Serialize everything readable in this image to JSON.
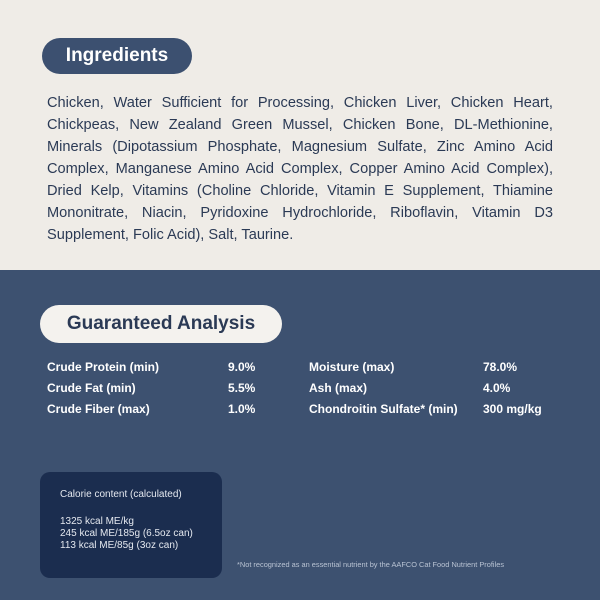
{
  "ingredients": {
    "title": "Ingredients",
    "text": "Chicken, Water Sufficient for Processing, Chicken Liver, Chicken Heart, Chickpeas, New Zealand Green Mussel, Chicken Bone, DL-Methionine, Minerals (Dipotassium Phosphate, Magnesium Sulfate, Zinc Amino Acid Complex, Manganese Amino Acid Complex, Copper Amino Acid Complex), Dried Kelp, Vitamins (Choline Chloride, Vitamin E Supplement, Thiamine Mononitrate, Niacin, Pyridoxine Hydrochloride, Riboflavin, Vitamin D3 Supplement, Folic Acid), Salt, Taurine."
  },
  "analysis": {
    "title": "Guaranteed Analysis",
    "rows": [
      [
        "Crude Protein (min)",
        "9.0%",
        "Moisture (max)",
        "78.0%"
      ],
      [
        "Crude Fat (min)",
        "5.5%",
        "Ash (max)",
        "4.0%"
      ],
      [
        "Crude Fiber (max)",
        "1.0%",
        "Chondroitin Sulfate* (min)",
        "300 mg/kg"
      ]
    ]
  },
  "calorie": {
    "title": "Calorie content (calculated)",
    "lines": [
      "1325 kcal ME/kg",
      "245 kcal ME/185g (6.5oz can)",
      "113 kcal ME/85g (3oz can)"
    ]
  },
  "footnote": "*Not recognized as an essential nutrient by the AAFCO Cat Food Nutrient Profiles"
}
